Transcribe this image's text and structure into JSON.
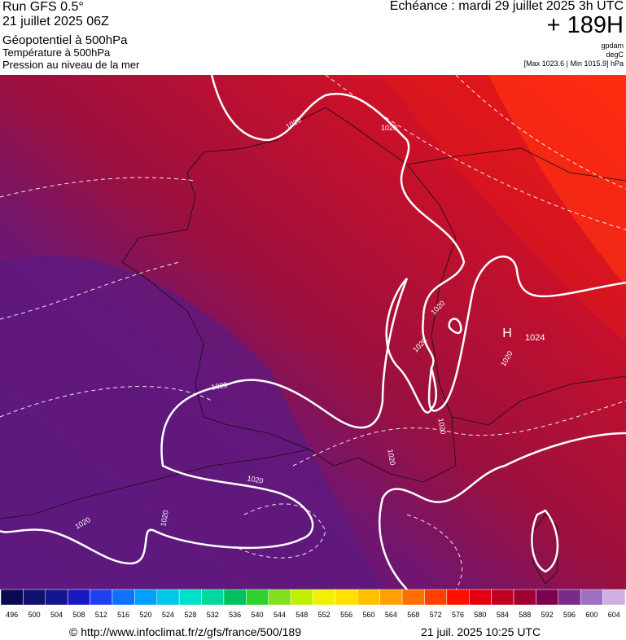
{
  "header": {
    "run": "Run GFS 0.5°",
    "date": "21 juillet 2025 06Z",
    "field1": "Géopotentiel à 500hPa",
    "field2": "Température à 500hPa",
    "field3": "Pression au niveau de la mer",
    "echeance": "Echéance : mardi 29 juillet 2025 3h UTC",
    "hour": "+ 189H",
    "unit1": "gpdam",
    "unit2": "degC",
    "range": "[Max 1023.6 | Min 1015.9] hPa"
  },
  "map_labels": [
    "1020",
    "1020",
    "1020",
    "1020",
    "1020",
    "1020",
    "1020",
    "1020",
    "1020",
    "1020",
    "1020",
    "H",
    "1024"
  ],
  "colorbar": {
    "labels": [
      "496",
      "500",
      "504",
      "508",
      "512",
      "516",
      "520",
      "524",
      "528",
      "532",
      "536",
      "540",
      "544",
      "548",
      "552",
      "556",
      "560",
      "564",
      "568",
      "572",
      "576",
      "580",
      "584",
      "588",
      "592",
      "596",
      "600",
      "604"
    ],
    "colors": [
      "#0a0a50",
      "#101070",
      "#141490",
      "#1818c0",
      "#1e40f0",
      "#1070ff",
      "#00a0ff",
      "#00c8e8",
      "#00e0c8",
      "#00d8a0",
      "#00c060",
      "#30d030",
      "#80e020",
      "#c0f000",
      "#f0f000",
      "#ffe000",
      "#ffc000",
      "#ffa000",
      "#ff7000",
      "#ff4000",
      "#ff1000",
      "#e00010",
      "#c00020",
      "#a00030",
      "#800050",
      "#7a2a8a",
      "#a070c0",
      "#d0b0e0"
    ]
  },
  "footer": {
    "source": "© http://www.infoclimat.fr/z/gfs/france/500/189",
    "timestamp": "21 juil. 2025 10:25 UTC"
  }
}
